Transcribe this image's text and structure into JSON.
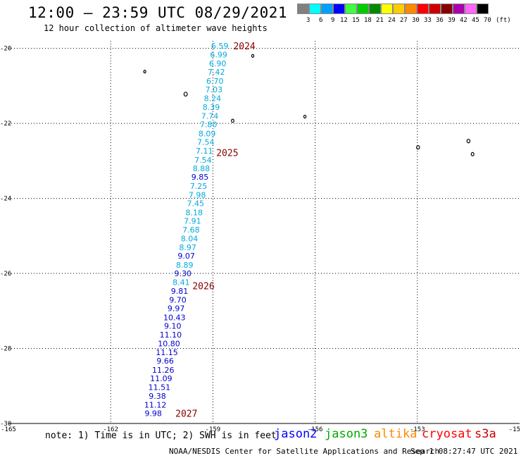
{
  "header": {
    "title": "12:00 — 23:59 UTC 08/29/2021",
    "subtitle": "12 hour collection of altimeter wave heights"
  },
  "color_scale": {
    "colors": [
      "#808080",
      "#00ffff",
      "#00a0ff",
      "#0000ff",
      "#40ff40",
      "#00cc00",
      "#008800",
      "#ffff00",
      "#ffcc00",
      "#ff8800",
      "#ff0000",
      "#cc0000",
      "#880000",
      "#aa00aa",
      "#ff66ff",
      "#000000"
    ],
    "labels": [
      "3",
      "6",
      "9",
      "12",
      "15",
      "18",
      "21",
      "24",
      "27",
      "30",
      "33",
      "36",
      "39",
      "42",
      "45",
      "70",
      "(ft)"
    ]
  },
  "axes": {
    "x_ticks": [
      "-165",
      "-162",
      "-159",
      "-156",
      "-153",
      "-15"
    ],
    "y_ticks": [
      "-20",
      "-22",
      "-24",
      "-26",
      "-28",
      "-30"
    ]
  },
  "chart_data": {
    "type": "scatter",
    "x_range": [
      -165,
      -150
    ],
    "y_range": [
      -30,
      -19.8
    ],
    "colors": {
      "cyan": "#00aadd",
      "blue": "#0000cc",
      "year": "#880000"
    },
    "points": [
      {
        "lon": -158.8,
        "lat": -19.93,
        "v": "6.59",
        "c": "cyan"
      },
      {
        "lon": -158.83,
        "lat": -20.17,
        "v": "6.99",
        "c": "cyan"
      },
      {
        "lon": -158.86,
        "lat": -20.4,
        "v": "6.90",
        "c": "cyan"
      },
      {
        "lon": -158.9,
        "lat": -20.63,
        "v": "7.42",
        "c": "cyan"
      },
      {
        "lon": -158.94,
        "lat": -20.87,
        "v": "6.70",
        "c": "cyan"
      },
      {
        "lon": -158.97,
        "lat": -21.1,
        "v": "7.03",
        "c": "cyan"
      },
      {
        "lon": -159.01,
        "lat": -21.33,
        "v": "8.24",
        "c": "cyan"
      },
      {
        "lon": -159.05,
        "lat": -21.57,
        "v": "8.39",
        "c": "cyan"
      },
      {
        "lon": -159.09,
        "lat": -21.8,
        "v": "7.74",
        "c": "cyan"
      },
      {
        "lon": -159.13,
        "lat": -22.03,
        "v": "7.80",
        "c": "cyan"
      },
      {
        "lon": -159.17,
        "lat": -22.27,
        "v": "8.09",
        "c": "cyan"
      },
      {
        "lon": -159.21,
        "lat": -22.5,
        "v": "7.54",
        "c": "cyan"
      },
      {
        "lon": -159.25,
        "lat": -22.73,
        "v": "7.11",
        "c": "cyan"
      },
      {
        "lon": -159.29,
        "lat": -22.97,
        "v": "7.54",
        "c": "cyan"
      },
      {
        "lon": -159.34,
        "lat": -23.2,
        "v": "8.88",
        "c": "cyan"
      },
      {
        "lon": -159.38,
        "lat": -23.43,
        "v": "9.85",
        "c": "blue"
      },
      {
        "lon": -159.42,
        "lat": -23.67,
        "v": "7.25",
        "c": "cyan"
      },
      {
        "lon": -159.46,
        "lat": -23.9,
        "v": "7.98",
        "c": "cyan"
      },
      {
        "lon": -159.51,
        "lat": -24.13,
        "v": "7.45",
        "c": "cyan"
      },
      {
        "lon": -159.55,
        "lat": -24.37,
        "v": "8.18",
        "c": "cyan"
      },
      {
        "lon": -159.6,
        "lat": -24.6,
        "v": "7.91",
        "c": "cyan"
      },
      {
        "lon": -159.64,
        "lat": -24.83,
        "v": "7.68",
        "c": "cyan"
      },
      {
        "lon": -159.69,
        "lat": -25.07,
        "v": "8.04",
        "c": "cyan"
      },
      {
        "lon": -159.74,
        "lat": -25.3,
        "v": "8.97",
        "c": "cyan"
      },
      {
        "lon": -159.78,
        "lat": -25.53,
        "v": "9.07",
        "c": "blue"
      },
      {
        "lon": -159.83,
        "lat": -25.77,
        "v": "8.89",
        "c": "cyan"
      },
      {
        "lon": -159.88,
        "lat": -26.0,
        "v": "9.30",
        "c": "blue"
      },
      {
        "lon": -159.93,
        "lat": -26.23,
        "v": "8.41",
        "c": "cyan"
      },
      {
        "lon": -159.98,
        "lat": -26.47,
        "v": "9.81",
        "c": "blue"
      },
      {
        "lon": -160.03,
        "lat": -26.7,
        "v": "9.70",
        "c": "blue"
      },
      {
        "lon": -160.08,
        "lat": -26.93,
        "v": "9.97",
        "c": "blue"
      },
      {
        "lon": -160.13,
        "lat": -27.17,
        "v": "10.43",
        "c": "blue"
      },
      {
        "lon": -160.18,
        "lat": -27.4,
        "v": "9.10",
        "c": "blue"
      },
      {
        "lon": -160.24,
        "lat": -27.63,
        "v": "11.10",
        "c": "blue"
      },
      {
        "lon": -160.29,
        "lat": -27.87,
        "v": "10.80",
        "c": "blue"
      },
      {
        "lon": -160.35,
        "lat": -28.1,
        "v": "11.15",
        "c": "blue"
      },
      {
        "lon": -160.4,
        "lat": -28.33,
        "v": "9.66",
        "c": "blue"
      },
      {
        "lon": -160.46,
        "lat": -28.57,
        "v": "11.26",
        "c": "blue"
      },
      {
        "lon": -160.52,
        "lat": -28.8,
        "v": "11.09",
        "c": "blue"
      },
      {
        "lon": -160.57,
        "lat": -29.03,
        "v": "11.51",
        "c": "blue"
      },
      {
        "lon": -160.63,
        "lat": -29.27,
        "v": "9.38",
        "c": "blue"
      },
      {
        "lon": -160.69,
        "lat": -29.5,
        "v": "11.12",
        "c": "blue"
      },
      {
        "lon": -160.75,
        "lat": -29.73,
        "v": "9.98",
        "c": "blue"
      }
    ],
    "time_labels": [
      {
        "lon": -158.4,
        "lat": -19.93,
        "t": "2024"
      },
      {
        "lon": -158.9,
        "lat": -22.78,
        "t": "2025"
      },
      {
        "lon": -159.6,
        "lat": -26.33,
        "t": "2026"
      },
      {
        "lon": -160.1,
        "lat": -29.73,
        "t": "2027"
      }
    ],
    "islands": [
      {
        "lon": -157.83,
        "lat": -20.2,
        "s": 2.5
      },
      {
        "lon": -161.0,
        "lat": -20.62,
        "s": 2.4
      },
      {
        "lon": -159.8,
        "lat": -21.22,
        "s": 4
      },
      {
        "lon": -158.42,
        "lat": -21.93,
        "s": 3
      },
      {
        "lon": -156.3,
        "lat": -21.82,
        "s": 2.6
      },
      {
        "lon": -152.98,
        "lat": -22.64,
        "s": 3.6
      },
      {
        "lon": -151.5,
        "lat": -22.47,
        "s": 3.6
      },
      {
        "lon": -151.38,
        "lat": -22.82,
        "s": 3.2
      }
    ]
  },
  "footer": {
    "note": "note: 1) Time is in UTC; 2) SWH is in feet",
    "missions": [
      {
        "name": "jason2",
        "color": "#0000ff"
      },
      {
        "name": "jason3",
        "color": "#00aa00"
      },
      {
        "name": "altika",
        "color": "#ff8800"
      },
      {
        "name": "cryosat",
        "color": "#ff0000"
      },
      {
        "name": "s3a",
        "color": "#cc0000"
      }
    ],
    "credit": "NOAA/NESDIS Center for Satellite Applications and Research",
    "timestamp": "Sep  1 08:27:47 UTC 2021"
  }
}
